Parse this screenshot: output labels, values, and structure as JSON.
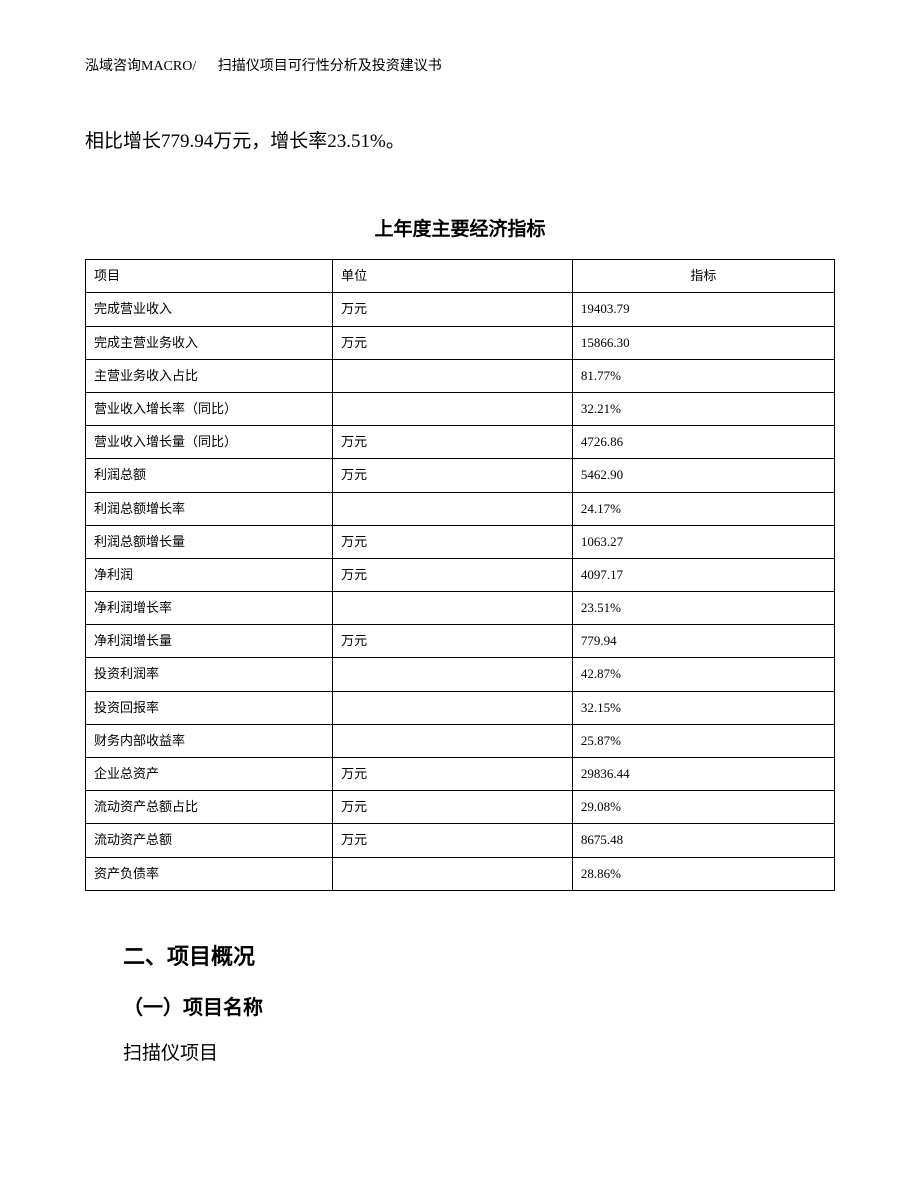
{
  "header": {
    "company": "泓域咨询MACRO/",
    "doc_title": "扫描仪项目可行性分析及投资建议书"
  },
  "intro_text": "相比增长779.94万元，增长率23.51%。",
  "table": {
    "title": "上年度主要经济指标",
    "columns": [
      "项目",
      "单位",
      "指标"
    ],
    "rows": [
      [
        "完成营业收入",
        "万元",
        "19403.79"
      ],
      [
        "完成主营业务收入",
        "万元",
        "15866.30"
      ],
      [
        "主营业务收入占比",
        "",
        "81.77%"
      ],
      [
        "营业收入增长率（同比）",
        "",
        "32.21%"
      ],
      [
        "营业收入增长量（同比）",
        "万元",
        "4726.86"
      ],
      [
        "利润总额",
        "万元",
        "5462.90"
      ],
      [
        "利润总额增长率",
        "",
        "24.17%"
      ],
      [
        "利润总额增长量",
        "万元",
        "1063.27"
      ],
      [
        "净利润",
        "万元",
        "4097.17"
      ],
      [
        "净利润增长率",
        "",
        "23.51%"
      ],
      [
        "净利润增长量",
        "万元",
        "779.94"
      ],
      [
        "投资利润率",
        "",
        "42.87%"
      ],
      [
        "投资回报率",
        "",
        "32.15%"
      ],
      [
        "财务内部收益率",
        "",
        "25.87%"
      ],
      [
        "企业总资产",
        "万元",
        "29836.44"
      ],
      [
        "流动资产总额占比",
        "万元",
        "29.08%"
      ],
      [
        "流动资产总额",
        "万元",
        "8675.48"
      ],
      [
        "资产负债率",
        "",
        "28.86%"
      ]
    ]
  },
  "section": {
    "heading": "二、项目概况",
    "sub_heading": "（一）项目名称",
    "body": "扫描仪项目"
  }
}
